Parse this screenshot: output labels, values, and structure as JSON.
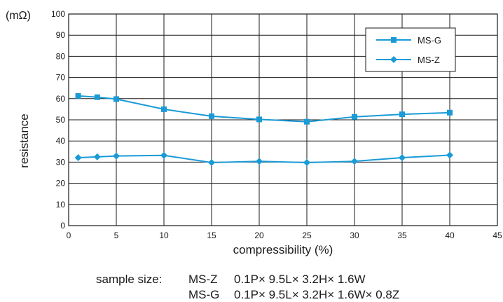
{
  "chart_data": {
    "type": "line",
    "title": "",
    "xlabel": "compressibility (%)",
    "ylabel": "resistance",
    "yunit": "(mΩ)",
    "xlim": [
      0,
      45
    ],
    "ylim": [
      0,
      100
    ],
    "xticks": [
      0,
      5,
      10,
      15,
      20,
      25,
      30,
      35,
      40,
      45
    ],
    "yticks": [
      0,
      10,
      20,
      30,
      40,
      50,
      60,
      70,
      80,
      90,
      100
    ],
    "grid": true,
    "legend_position": "top-right",
    "series": [
      {
        "name": "MS-G",
        "marker": "square",
        "color": "#1a9ad6",
        "x": [
          1,
          3,
          5,
          10,
          15,
          20,
          25,
          30,
          35,
          40
        ],
        "y": [
          61.3,
          60.7,
          59.8,
          55,
          51.7,
          50.2,
          49.1,
          51.4,
          52.6,
          53.4
        ]
      },
      {
        "name": "MS-Z",
        "marker": "diamond",
        "color": "#1a9ad6",
        "x": [
          1,
          3,
          5,
          10,
          15,
          20,
          25,
          30,
          35,
          40
        ],
        "y": [
          32.1,
          32.5,
          32.9,
          33.2,
          29.8,
          30.4,
          29.8,
          30.4,
          32.1,
          33.3
        ]
      }
    ]
  },
  "notes": {
    "label": "sample size:",
    "line1_name": "MS-Z",
    "line1_spec": "0.1P× 9.5L× 3.2H× 1.6W",
    "line2_name": "MS-G",
    "line2_spec": "0.1P× 9.5L× 3.2H× 1.6W× 0.8Z"
  }
}
